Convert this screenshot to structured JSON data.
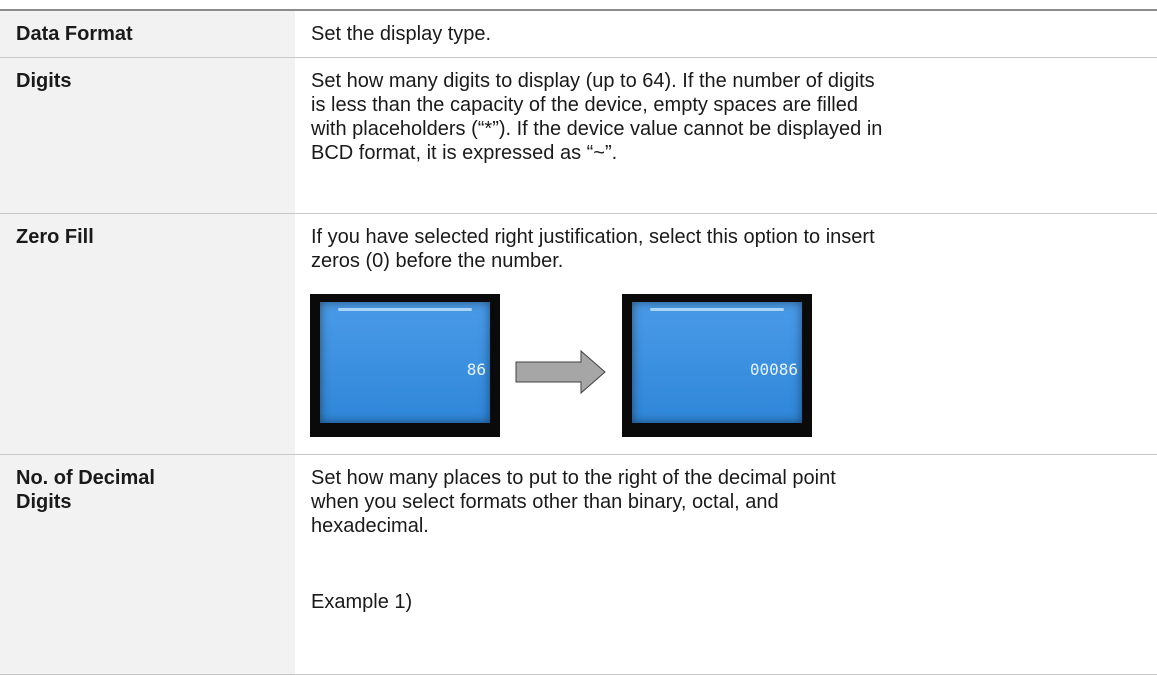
{
  "table": {
    "rows": [
      {
        "label": [
          "Data Format"
        ],
        "lines": [
          "Set the display type."
        ]
      },
      {
        "label": [
          "Digits"
        ],
        "lines": [
          "Set how many digits to display (up to 64). If the number of digits",
          "is less than the capacity of the device, empty spaces are filled",
          "with placeholders (“*”). If the device value cannot be displayed in",
          "BCD format, it is expressed as “~”."
        ]
      },
      {
        "label": [
          "Zero Fill"
        ],
        "lines": [
          "If you have selected right justification, select this option to insert",
          "zeros (0) before the number."
        ],
        "example_before": "86",
        "example_after": "00086"
      },
      {
        "label": [
          "No. of Decimal",
          "Digits"
        ],
        "lines": [
          "Set how many places to put to the right of the decimal point",
          "when you select formats other than binary, octal, and",
          "hexadecimal."
        ],
        "example": "Example 1)"
      }
    ]
  }
}
